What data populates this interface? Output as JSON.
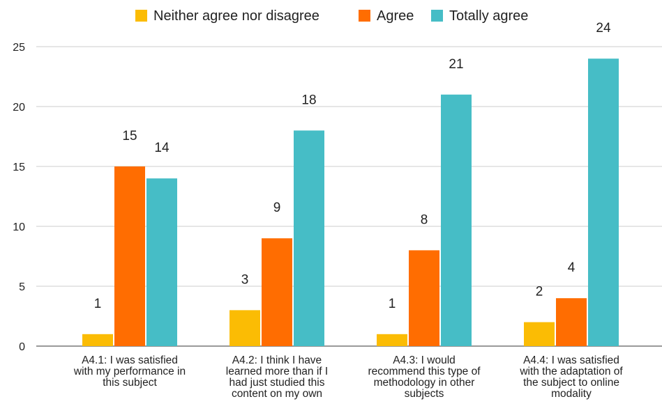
{
  "chart_data": {
    "type": "bar",
    "title": "",
    "xlabel": "",
    "ylabel": "",
    "ylim": [
      0,
      25
    ],
    "yticks": [
      0,
      5,
      10,
      15,
      20,
      25
    ],
    "grid": true,
    "legend_position": "top",
    "categories": [
      [
        "A4.1: I was satisfied",
        "with my performance in",
        "this subject"
      ],
      [
        "A4.2: I think I have",
        "learned more than if I",
        "had just studied this",
        "content on my own"
      ],
      [
        "A4.3: I would",
        "recommend this type of",
        "methodology in other",
        "subjects"
      ],
      [
        "A4.4: I was satisfied",
        "with the adaptation of",
        "the subject to online",
        "modality"
      ]
    ],
    "series": [
      {
        "name": "Neither agree nor disagree",
        "color": "#FBBC04",
        "values": [
          1,
          3,
          1,
          2
        ]
      },
      {
        "name": "Agree",
        "color": "#FF6D01",
        "values": [
          15,
          9,
          8,
          4
        ]
      },
      {
        "name": "Totally agree",
        "color": "#46BDC6",
        "values": [
          14,
          18,
          21,
          24
        ]
      }
    ]
  }
}
